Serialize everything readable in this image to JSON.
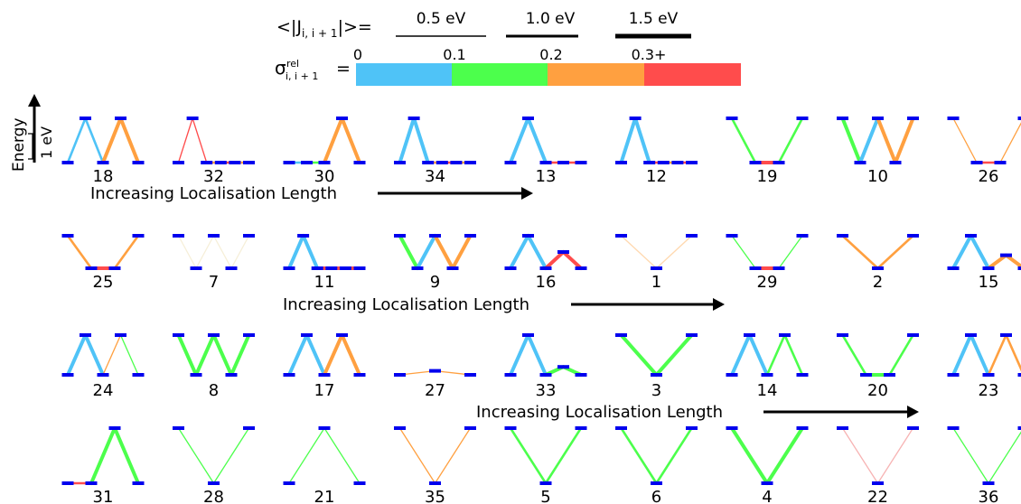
{
  "legend": {
    "coupling_prefix": "<|J",
    "coupling_subscript": "i, i + 1",
    "coupling_suffix": "|>=",
    "thickness_entries": [
      {
        "label": "0.5 eV",
        "coupling_ev": 0.5
      },
      {
        "label": "1.0 eV",
        "coupling_ev": 1.0
      },
      {
        "label": "1.5 eV",
        "coupling_ev": 1.5
      }
    ],
    "sigma_symbol": "σ",
    "sigma_superscript": "rel",
    "sigma_subscript": "i, i + 1",
    "sigma_equals": "=",
    "colorbar_ticks": [
      "0",
      "0.1",
      "0.2",
      "0.3+"
    ],
    "colorbar_colors": [
      "#4FC3F7",
      "#4CFF4C",
      "#FFA040",
      "#FF4C4C"
    ]
  },
  "axis": {
    "energy_label": "Energy",
    "scale_label": "1 eV"
  },
  "arrow_label": "Increasing Localisation Length",
  "colors": {
    "site_marker": "#0000EE",
    "blue": "#4FC3F7",
    "green": "#4CFF4C",
    "orange": "#FFA040",
    "red": "#FF4C4C",
    "pink": "#F7B3B3",
    "peach": "#FFD9B0",
    "pale": "#F6EFD8"
  },
  "rows": [
    {
      "motifs": [
        {
          "id": "18",
          "levels": [
            0,
            1,
            0,
            1,
            0
          ],
          "bonds": [
            "blue",
            "blue",
            "orange",
            "orange"
          ],
          "thick": [
            2,
            2,
            3,
            3
          ]
        },
        {
          "id": "32",
          "levels": [
            0,
            1,
            0,
            0,
            0,
            0
          ],
          "bonds": [
            "red",
            "red",
            "orange",
            "red",
            "orange"
          ],
          "thick": [
            1,
            1,
            2,
            2,
            2
          ]
        },
        {
          "id": "30",
          "levels": [
            0,
            0,
            0,
            1,
            0
          ],
          "bonds": [
            "blue",
            "green",
            "orange",
            "orange"
          ],
          "thick": [
            2,
            2,
            3,
            3
          ]
        },
        {
          "id": "34",
          "levels": [
            0,
            1,
            0,
            0,
            0,
            0
          ],
          "bonds": [
            "blue",
            "blue",
            "orange",
            "red",
            "orange"
          ],
          "thick": [
            3,
            3,
            2,
            2,
            2
          ]
        },
        {
          "id": "13",
          "levels": [
            0,
            1,
            0,
            0,
            0
          ],
          "bonds": [
            "blue",
            "blue",
            "red",
            "red"
          ],
          "thick": [
            3,
            3,
            2,
            2
          ]
        },
        {
          "id": "12",
          "levels": [
            0,
            1,
            0,
            0,
            0,
            0
          ],
          "bonds": [
            "blue",
            "blue",
            "red",
            "orange",
            "red"
          ],
          "thick": [
            3,
            3,
            2,
            2,
            2
          ]
        },
        {
          "id": "19",
          "levels": [
            1,
            0,
            0,
            1
          ],
          "bonds": [
            "green",
            "red",
            "green"
          ],
          "thick": [
            2,
            3,
            2
          ]
        },
        {
          "id": "10",
          "levels": [
            1,
            0,
            1,
            0,
            1
          ],
          "bonds": [
            "green",
            "blue",
            "orange",
            "orange"
          ],
          "thick": [
            3,
            3,
            3,
            3
          ]
        },
        {
          "id": "26",
          "levels": [
            1,
            0,
            0,
            1
          ],
          "bonds": [
            "orange",
            "red",
            "orange"
          ],
          "thick": [
            1,
            2,
            1
          ]
        }
      ]
    },
    {
      "motifs": [
        {
          "id": "25",
          "levels": [
            1,
            0,
            0,
            1
          ],
          "bonds": [
            "orange",
            "red",
            "orange"
          ],
          "thick": [
            2,
            3,
            2
          ]
        },
        {
          "id": "7",
          "levels": [
            1,
            0,
            1,
            0,
            1
          ],
          "bonds": [
            "pale",
            "pale",
            "pale",
            "pale"
          ],
          "thick": [
            1,
            1,
            1,
            1
          ]
        },
        {
          "id": "11",
          "levels": [
            0,
            1,
            0,
            0,
            0,
            0
          ],
          "bonds": [
            "blue",
            "blue",
            "red",
            "red",
            "red"
          ],
          "thick": [
            3,
            3,
            3,
            3,
            3
          ]
        },
        {
          "id": "9",
          "levels": [
            1,
            0,
            1,
            0,
            1
          ],
          "bonds": [
            "green",
            "blue",
            "orange",
            "orange"
          ],
          "thick": [
            3,
            3,
            3,
            3
          ]
        },
        {
          "id": "16",
          "levels": [
            0,
            1,
            0,
            0.5,
            0
          ],
          "bonds": [
            "blue",
            "blue",
            "red",
            "red"
          ],
          "thick": [
            3,
            3,
            3,
            3
          ]
        },
        {
          "id": "1",
          "levels": [
            1,
            0,
            1
          ],
          "bonds": [
            "peach",
            "peach"
          ],
          "thick": [
            1,
            1
          ]
        },
        {
          "id": "29",
          "levels": [
            1,
            0,
            0,
            1
          ],
          "bonds": [
            "green",
            "red",
            "green"
          ],
          "thick": [
            1,
            3,
            1
          ]
        },
        {
          "id": "2",
          "levels": [
            1,
            0,
            1
          ],
          "bonds": [
            "orange",
            "orange"
          ],
          "thick": [
            2,
            2
          ]
        },
        {
          "id": "15",
          "levels": [
            0,
            1,
            0,
            0.4,
            0
          ],
          "bonds": [
            "blue",
            "blue",
            "orange",
            "orange"
          ],
          "thick": [
            3,
            3,
            3,
            3
          ]
        }
      ]
    },
    {
      "motifs": [
        {
          "id": "24",
          "levels": [
            0,
            1,
            0,
            1,
            0
          ],
          "bonds": [
            "blue",
            "blue",
            "orange",
            "green"
          ],
          "thick": [
            3,
            3,
            1,
            1
          ]
        },
        {
          "id": "8",
          "levels": [
            1,
            0,
            1,
            0,
            1
          ],
          "bonds": [
            "green",
            "green",
            "green",
            "green"
          ],
          "thick": [
            3,
            3,
            3,
            3
          ]
        },
        {
          "id": "17",
          "levels": [
            0,
            1,
            0,
            1,
            0
          ],
          "bonds": [
            "blue",
            "blue",
            "orange",
            "orange"
          ],
          "thick": [
            3,
            3,
            3,
            3
          ]
        },
        {
          "id": "27",
          "levels": [
            0,
            0.1,
            0
          ],
          "bonds": [
            "orange",
            "orange"
          ],
          "thick": [
            1,
            1
          ]
        },
        {
          "id": "33",
          "levels": [
            0,
            1,
            0,
            0.2,
            0
          ],
          "bonds": [
            "blue",
            "blue",
            "green",
            "green"
          ],
          "thick": [
            3,
            3,
            3,
            3
          ]
        },
        {
          "id": "3",
          "levels": [
            1,
            0,
            1
          ],
          "bonds": [
            "green",
            "green"
          ],
          "thick": [
            3,
            3
          ]
        },
        {
          "id": "14",
          "levels": [
            0,
            1,
            0,
            1,
            0
          ],
          "bonds": [
            "blue",
            "blue",
            "green",
            "green"
          ],
          "thick": [
            3,
            3,
            2,
            2
          ]
        },
        {
          "id": "20",
          "levels": [
            1,
            0,
            0,
            1
          ],
          "bonds": [
            "green",
            "green",
            "green"
          ],
          "thick": [
            2,
            3,
            2
          ]
        },
        {
          "id": "23",
          "levels": [
            0,
            1,
            0,
            1,
            0
          ],
          "bonds": [
            "blue",
            "blue",
            "orange",
            "orange"
          ],
          "thick": [
            3,
            3,
            2,
            2
          ]
        }
      ]
    },
    {
      "motifs": [
        {
          "id": "31",
          "levels": [
            0,
            0,
            1,
            0
          ],
          "bonds": [
            "red",
            "green",
            "green"
          ],
          "thick": [
            2,
            3,
            3
          ]
        },
        {
          "id": "28",
          "levels": [
            1,
            0,
            1
          ],
          "bonds": [
            "green",
            "green"
          ],
          "thick": [
            1,
            1
          ]
        },
        {
          "id": "21",
          "levels": [
            0,
            1,
            0
          ],
          "bonds": [
            "green",
            "green"
          ],
          "thick": [
            1,
            1
          ]
        },
        {
          "id": "35",
          "levels": [
            1,
            0,
            1
          ],
          "bonds": [
            "orange",
            "orange"
          ],
          "thick": [
            1,
            1
          ]
        },
        {
          "id": "5",
          "levels": [
            1,
            0,
            1
          ],
          "bonds": [
            "green",
            "green"
          ],
          "thick": [
            2,
            2
          ]
        },
        {
          "id": "6",
          "levels": [
            1,
            0,
            1
          ],
          "bonds": [
            "green",
            "green"
          ],
          "thick": [
            2,
            2
          ]
        },
        {
          "id": "4",
          "levels": [
            1,
            0,
            1
          ],
          "bonds": [
            "green",
            "green"
          ],
          "thick": [
            3,
            3
          ]
        },
        {
          "id": "22",
          "levels": [
            1,
            0,
            1
          ],
          "bonds": [
            "pink",
            "pink"
          ],
          "thick": [
            1,
            1
          ]
        },
        {
          "id": "36",
          "levels": [
            1,
            0,
            1
          ],
          "bonds": [
            "green",
            "green"
          ],
          "thick": [
            1,
            1
          ]
        }
      ]
    }
  ],
  "arrows": [
    {
      "row": 0
    },
    {
      "row": 1
    },
    {
      "row": 2
    }
  ]
}
